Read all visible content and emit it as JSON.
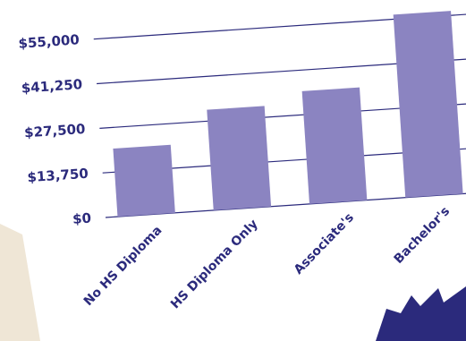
{
  "chart_data": {
    "type": "bar",
    "categories": [
      "No HS Diploma",
      "HS Diploma Only",
      "Associate's",
      "Bachelor's"
    ],
    "values": [
      21000,
      31000,
      34750,
      56400
    ],
    "color": "#8b84c1",
    "ylim": [
      0,
      57000
    ],
    "yticks": [
      {
        "value": 0,
        "label": "$0"
      },
      {
        "value": 13750,
        "label": "$13,750"
      },
      {
        "value": 27500,
        "label": "$27,500"
      },
      {
        "value": 41250,
        "label": "$41,250"
      },
      {
        "value": 55000,
        "label": "$55,000"
      }
    ],
    "grid": true
  }
}
